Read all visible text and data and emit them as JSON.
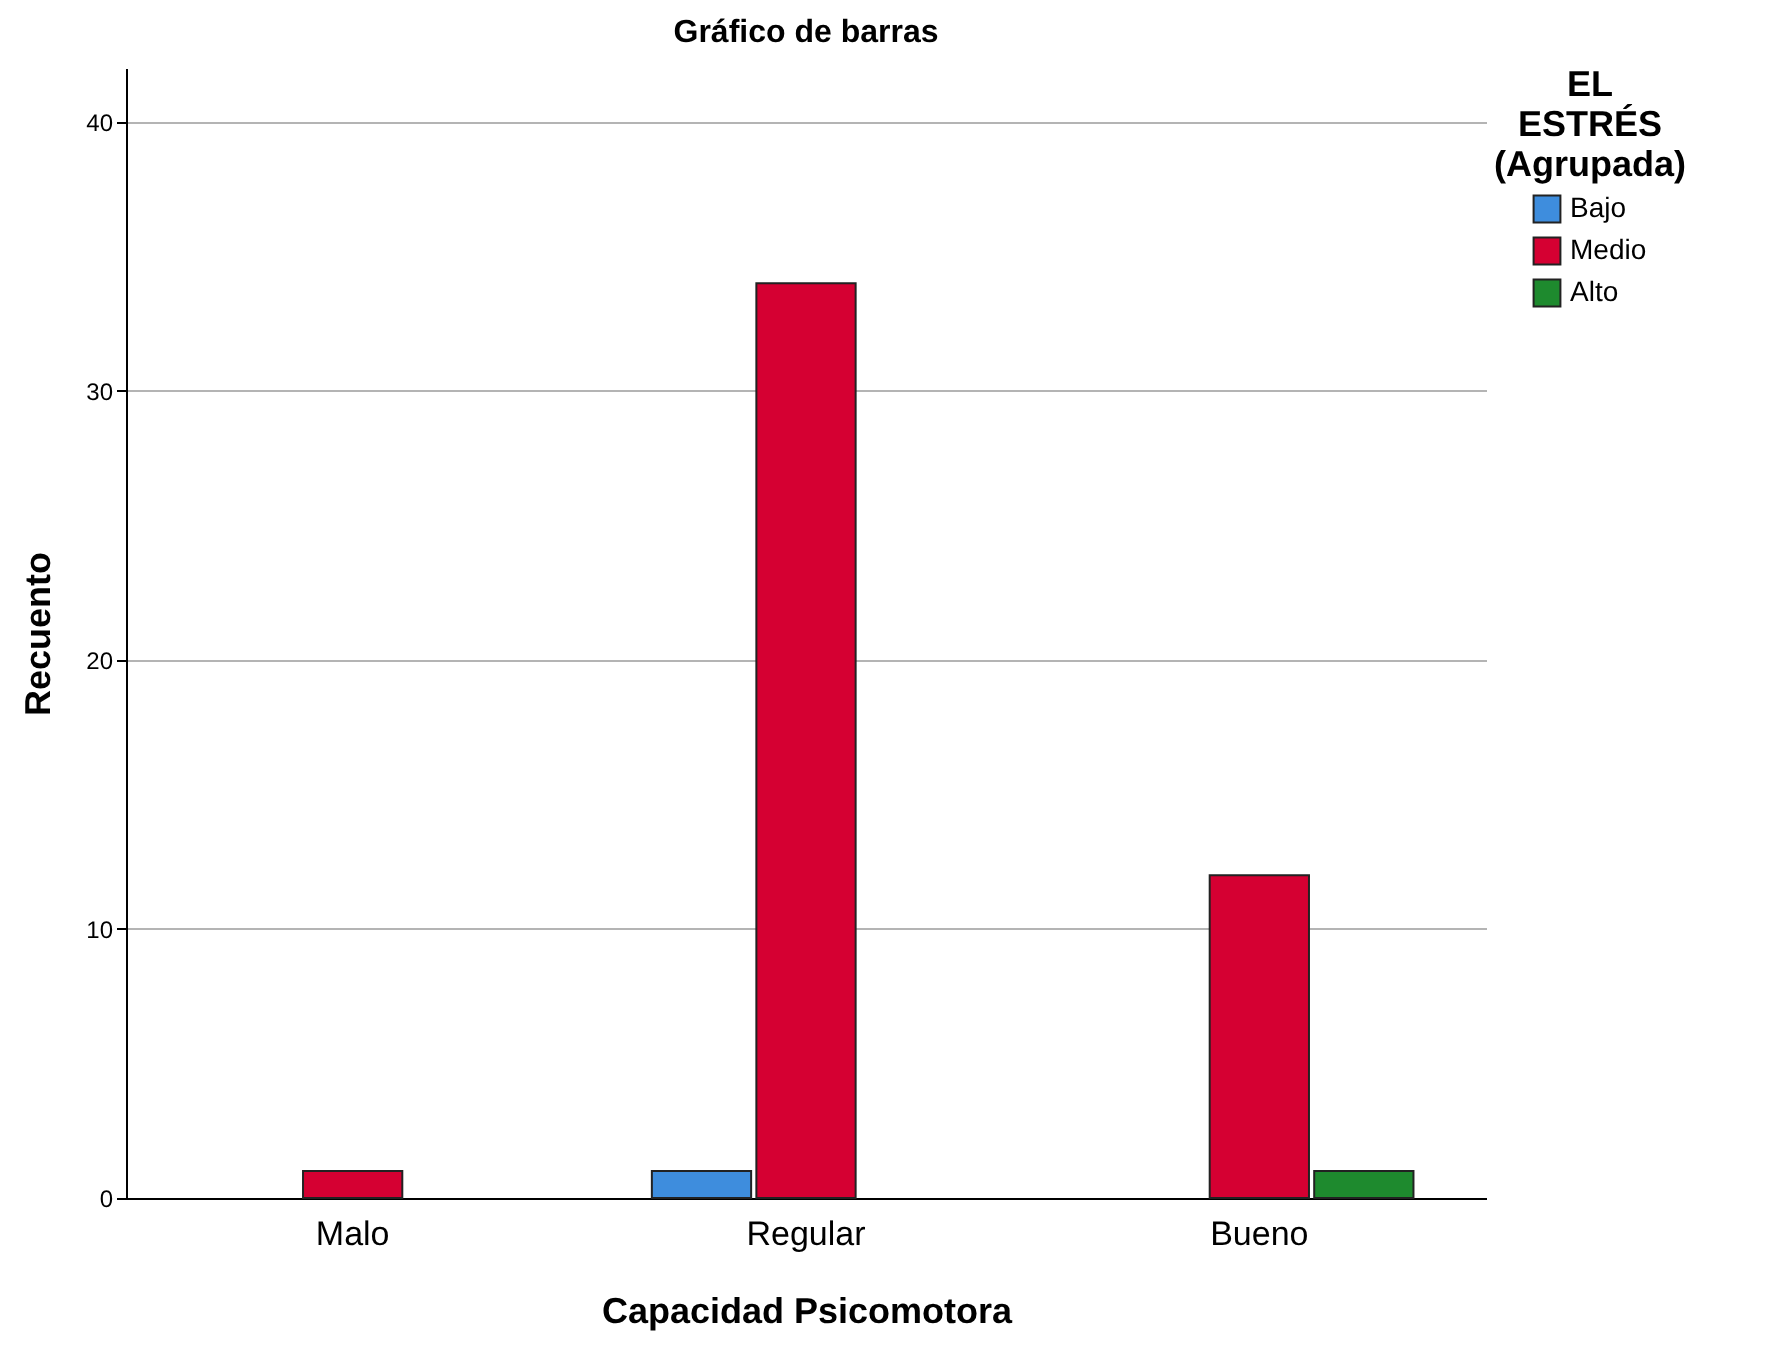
{
  "chart_data": {
    "type": "bar",
    "title": "Gráfico de barras",
    "xlabel": "Capacidad Psicomotora",
    "ylabel": "Recuento",
    "legend_title": "EL ESTRÉS (Agrupada)",
    "categories": [
      "Malo",
      "Regular",
      "Bueno"
    ],
    "series": [
      {
        "name": "Bajo",
        "color": "#3e8ddd",
        "values": [
          null,
          1,
          null
        ]
      },
      {
        "name": "Medio",
        "color": "#d50032",
        "values": [
          1,
          34,
          12
        ]
      },
      {
        "name": "Alto",
        "color": "#1e8a2e",
        "values": [
          null,
          null,
          1
        ]
      }
    ],
    "ylim": [
      0,
      42
    ],
    "yticks": [
      0,
      10,
      20,
      30,
      40
    ],
    "grid": "y",
    "legend": "top right"
  }
}
